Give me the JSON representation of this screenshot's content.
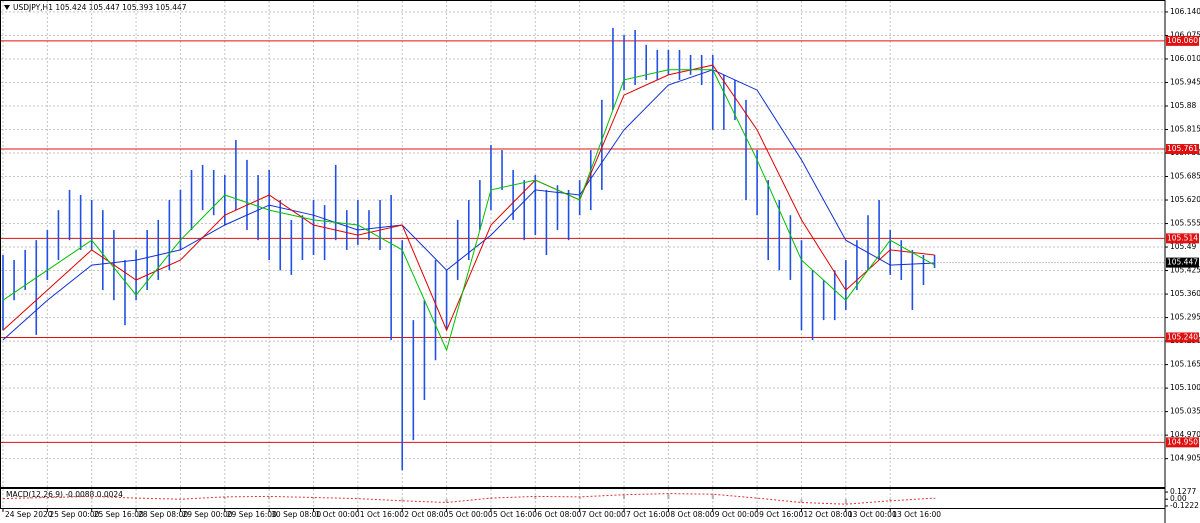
{
  "chart_data": [
    {
      "type": "ohlc",
      "title": "USDJPY,H1  105.424 105.447 105.393 105.447",
      "color": "#2150e6",
      "last_price": 105.447,
      "xlim": [
        -0.27,
        104.78
      ],
      "xticks": [
        {
          "value": 0,
          "label": "24 Sep 2020"
        },
        {
          "value": 4,
          "label": "25 Sep 00:00"
        },
        {
          "value": 8,
          "label": "25 Sep 16:00"
        },
        {
          "value": 12,
          "label": "28 Sep 08:00"
        },
        {
          "value": 16,
          "label": "29 Sep 00:00"
        },
        {
          "value": 20,
          "label": "29 Sep 16:00"
        },
        {
          "value": 24,
          "label": "30 Sep 08:00"
        },
        {
          "value": 28,
          "label": "1 Oct 00:00"
        },
        {
          "value": 32,
          "label": "1 Oct 16:00"
        },
        {
          "value": 36,
          "label": "2 Oct 08:00"
        },
        {
          "value": 40,
          "label": "5 Oct 00:00"
        },
        {
          "value": 44,
          "label": "5 Oct 16:00"
        },
        {
          "value": 48,
          "label": "6 Oct 08:00"
        },
        {
          "value": 52,
          "label": "7 Oct 00:00"
        },
        {
          "value": 56,
          "label": "7 Oct 16:00"
        },
        {
          "value": 60,
          "label": "8 Oct 08:00"
        },
        {
          "value": 64,
          "label": "9 Oct 00:00"
        },
        {
          "value": 68,
          "label": "9 Oct 16:00"
        },
        {
          "value": 72,
          "label": "12 Oct 08:00"
        },
        {
          "value": 76,
          "label": "13 Oct 00:00"
        },
        {
          "value": 80,
          "label": "13 Oct 16:00"
        }
      ],
      "ylim": [
        104.857,
        106.173
      ],
      "yticks": [
        {
          "value": 106.14,
          "label": "106.140"
        },
        106.075,
        {
          "value": 106.01,
          "label": "106.010"
        },
        105.945,
        105.88,
        105.815,
        {
          "value": 105.75,
          "label": "105.750"
        },
        105.685,
        {
          "value": 105.62,
          "label": "105.620"
        },
        105.555,
        105.49,
        105.425,
        {
          "value": 105.36,
          "label": "105.360"
        },
        105.295,
        {
          "value": 105.23,
          "label": "105.230"
        },
        105.165,
        {
          "value": 105.1,
          "label": "105.100"
        },
        105.035,
        {
          "value": 104.97,
          "label": "104.970"
        },
        104.905
      ],
      "grid": true,
      "levels": [
        {
          "value": 106.06,
          "label": "106.060"
        },
        {
          "value": 105.761,
          "label": "105.761"
        },
        {
          "value": 105.514,
          "label": "105.514"
        },
        {
          "value": 105.24,
          "label": "105.240"
        },
        {
          "value": 104.95,
          "label": "104.950"
        }
      ],
      "level_color": "#e01010",
      "high": [
        105.468,
        105.454,
        105.482,
        105.509,
        105.537,
        105.592,
        105.648,
        105.634,
        105.62,
        105.592,
        105.537,
        105.454,
        105.482,
        105.537,
        105.565,
        105.62,
        105.648,
        105.703,
        105.717,
        105.703,
        105.689,
        105.786,
        105.731,
        105.689,
        105.703,
        105.62,
        105.565,
        105.578,
        105.62,
        105.606,
        105.717,
        105.592,
        105.62,
        105.592,
        105.62,
        105.634,
        105.509,
        105.288,
        105.343,
        105.454,
        105.426,
        105.565,
        105.62,
        105.675,
        105.772,
        105.758,
        105.703,
        105.675,
        105.689,
        105.648,
        105.661,
        105.648,
        105.675,
        105.758,
        105.897,
        106.096,
        106.076,
        106.09,
        106.049,
        106.035,
        106.035,
        106.035,
        106.021,
        106.021,
        106.021,
        105.966,
        105.952,
        105.897,
        105.758,
        105.675,
        105.62,
        105.578,
        105.509,
        105.426,
        105.399,
        105.426,
        105.454,
        105.509,
        105.578,
        105.62,
        105.537,
        105.509,
        105.482,
        105.468,
        105.468
      ],
      "low": [
        105.26,
        105.343,
        105.371,
        105.247,
        105.399,
        105.454,
        105.509,
        105.482,
        105.482,
        105.371,
        105.343,
        105.274,
        105.343,
        105.371,
        105.399,
        105.426,
        105.482,
        105.537,
        105.592,
        105.578,
        105.551,
        105.592,
        105.537,
        105.509,
        105.454,
        105.426,
        105.413,
        105.454,
        105.468,
        105.454,
        105.509,
        105.482,
        105.496,
        105.509,
        105.482,
        105.233,
        104.873,
        104.956,
        105.067,
        105.177,
        105.26,
        105.399,
        105.454,
        105.537,
        105.592,
        105.648,
        105.565,
        105.509,
        105.523,
        105.468,
        105.537,
        105.509,
        105.578,
        105.592,
        105.648,
        105.869,
        105.924,
        105.938,
        105.952,
        105.952,
        105.966,
        105.952,
        105.966,
        105.938,
        105.814,
        105.814,
        105.841,
        105.62,
        105.578,
        105.454,
        105.426,
        105.399,
        105.26,
        105.233,
        105.288,
        105.288,
        105.316,
        105.371,
        105.426,
        105.454,
        105.413,
        105.399,
        105.316,
        105.385,
        105.432
      ],
      "series": [
        {
          "color": "#1030d0",
          "x": [
            0,
            4,
            8,
            12,
            16,
            20,
            24,
            28,
            32,
            36,
            40,
            44,
            48,
            52,
            56,
            60,
            64,
            68,
            72,
            76,
            80,
            84
          ],
          "values": [
            105.233,
            105.343,
            105.44,
            105.454,
            105.482,
            105.551,
            105.606,
            105.578,
            105.537,
            105.551,
            105.426,
            105.523,
            105.648,
            105.634,
            105.814,
            105.938,
            105.98,
            105.924,
            105.731,
            105.509,
            105.44,
            105.446
          ]
        },
        {
          "color": "#e00000",
          "x": [
            0,
            4,
            8,
            12,
            16,
            20,
            24,
            28,
            32,
            36,
            40,
            44,
            48,
            52,
            56,
            60,
            64,
            68,
            72,
            76,
            80,
            84
          ],
          "values": [
            105.26,
            105.371,
            105.482,
            105.399,
            105.454,
            105.578,
            105.634,
            105.551,
            105.523,
            105.551,
            105.26,
            105.551,
            105.675,
            105.62,
            105.91,
            105.966,
            105.993,
            105.814,
            105.565,
            105.371,
            105.482,
            105.468
          ]
        },
        {
          "color": "#00c000",
          "x": [
            0,
            4,
            8,
            12,
            16,
            20,
            24,
            28,
            32,
            36,
            40,
            44,
            48,
            52,
            56,
            60,
            64,
            68,
            72,
            76,
            80,
            84
          ],
          "values": [
            105.343,
            105.426,
            105.509,
            105.357,
            105.509,
            105.634,
            105.592,
            105.565,
            105.551,
            105.482,
            105.205,
            105.648,
            105.675,
            105.62,
            105.952,
            105.98,
            105.98,
            105.731,
            105.454,
            105.343,
            105.509,
            105.44
          ]
        }
      ]
    },
    {
      "type": "line",
      "title": "MACD(12,26,9) -0.0088 0.0024",
      "color": "#e03030",
      "ylim": [
        -0.1587,
        0.2007
      ],
      "yticks": [
        0.1277,
        {
          "value": 0,
          "label": "0.00"
        },
        -0.1222
      ],
      "x": [
        0,
        4,
        8,
        12,
        16,
        20,
        24,
        28,
        32,
        36,
        40,
        44,
        48,
        52,
        56,
        60,
        64,
        68,
        72,
        76,
        80,
        84
      ],
      "values": [
        0.01,
        0.03,
        0.05,
        0.02,
        0.0,
        0.04,
        0.05,
        0.03,
        0.01,
        -0.03,
        -0.06,
        0.02,
        0.05,
        0.04,
        0.08,
        0.1,
        0.09,
        0.02,
        -0.06,
        -0.09,
        -0.03,
        0.02
      ]
    }
  ]
}
